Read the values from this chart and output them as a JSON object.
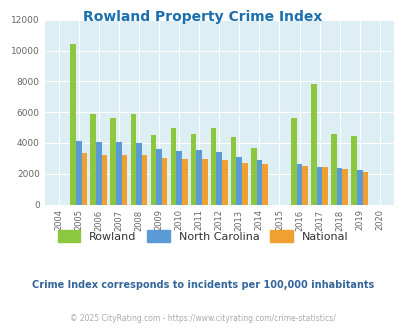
{
  "title": "Rowland Property Crime Index",
  "title_color": "#1a6faf",
  "subtitle": "Crime Index corresponds to incidents per 100,000 inhabitants",
  "subtitle_color": "#336699",
  "footer": "© 2025 CityRating.com - https://www.cityrating.com/crime-statistics/",
  "footer_color": "#aaaaaa",
  "years": [
    2004,
    2005,
    2006,
    2007,
    2008,
    2009,
    2010,
    2011,
    2012,
    2013,
    2014,
    2015,
    2016,
    2017,
    2018,
    2019,
    2020
  ],
  "rowland": [
    0,
    10400,
    5900,
    5600,
    5900,
    4550,
    4950,
    4600,
    4950,
    4400,
    3700,
    0,
    5600,
    7850,
    4600,
    4450,
    0
  ],
  "north_carolina": [
    0,
    4100,
    4050,
    4050,
    4000,
    3600,
    3500,
    3550,
    3400,
    3100,
    2900,
    0,
    2650,
    2450,
    2350,
    2250,
    0
  ],
  "national": [
    0,
    3350,
    3250,
    3200,
    3200,
    3000,
    2950,
    2950,
    2900,
    2700,
    2650,
    0,
    2500,
    2450,
    2300,
    2100,
    0
  ],
  "rowland_color": "#8dc63f",
  "nc_color": "#5b9bd5",
  "national_color": "#f0a030",
  "bg_color": "#ddeef5",
  "ylim": [
    0,
    12000
  ],
  "yticks": [
    0,
    2000,
    4000,
    6000,
    8000,
    10000,
    12000
  ],
  "bar_width": 0.28,
  "legend_labels": [
    "Rowland",
    "North Carolina",
    "National"
  ]
}
